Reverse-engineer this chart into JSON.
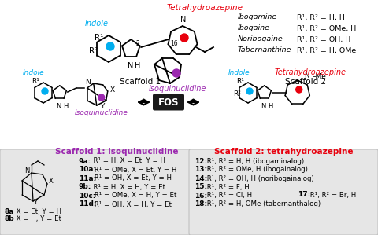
{
  "bg_color": "#ffffff",
  "tetrahydroazepine_color": "#e8000d",
  "indole_color": "#00aeef",
  "isoquinuclidine_color": "#9b27af",
  "scaffold1_title_color": "#9b27af",
  "scaffold2_title_color": "#e8000d",
  "fos_box_color": "#1a1a1a",
  "fos_text_color": "#ffffff",
  "top_right_compounds": [
    [
      "Ibogamine",
      "R¹, R² = H, H"
    ],
    [
      "Ibogaine",
      "R¹, R² = OMe, H"
    ],
    [
      "Noribogaine",
      "R¹, R² = OH, H"
    ],
    [
      "Tabernanthine",
      "R¹, R² = H, OMe"
    ]
  ],
  "scaffold1_title": "Scaffold 1: isoquinuclidine",
  "scaffold2_title": "Scaffold 2: tetrahydroazepine",
  "scaffold1_label_compounds": [
    [
      "8a",
      "X = Et, Y = H"
    ],
    [
      "8b",
      "X = H, Y = Et"
    ]
  ],
  "scaffold1_compounds": [
    [
      "9a:",
      "  R¹ = H, X = Et, Y = H"
    ],
    [
      "10a:",
      " R¹ = OMe, X = Et, Y = H"
    ],
    [
      "11a:",
      " R¹ = OH, X = Et, Y = H"
    ],
    [
      "9b:",
      "  R¹ = H, X = H, Y = Et"
    ],
    [
      "10c:",
      " R¹ = OMe, X = H, Y = Et"
    ],
    [
      "11d:",
      " R¹ = OH, X = H, Y = Et"
    ]
  ],
  "scaffold2_compounds": [
    [
      "12:",
      " R¹, R² = H, H (ibogaminalog)"
    ],
    [
      "13:",
      " R¹, R² = OMe, H (ibogainalog)"
    ],
    [
      "14:",
      " R¹, R² = OH, H (noribogainalog)"
    ],
    [
      "15:",
      " R¹, R² = F, H"
    ],
    [
      "16:",
      " R¹, R² = Cl, H"
    ],
    [
      "18:",
      " R¹, R² = H, OMe (tabernanthalog)"
    ]
  ],
  "scaffold2_compound17": [
    "17:",
    " R¹, R² = Br, H"
  ]
}
